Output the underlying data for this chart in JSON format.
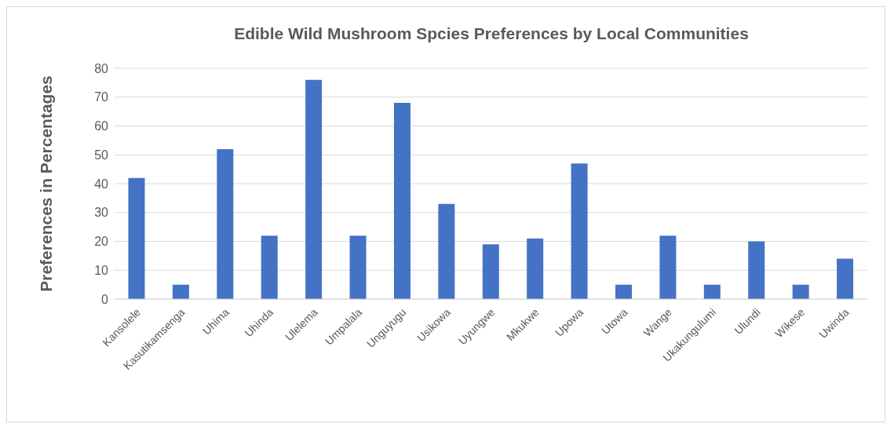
{
  "chart_data": {
    "type": "bar",
    "title": "Edible Wild Mushroom Spcies Preferences by Local Communities",
    "ylabel": "Preferences in Percentages",
    "categories": [
      "Kansolele",
      "Kasutikamsenga",
      "Uhima",
      "Uhinda",
      "Ulelema",
      "Umpalala",
      "Unguyugu",
      "Usikowa",
      "Uyungwe",
      "Mkukwe",
      "Upowa",
      "Utowa",
      "Wange",
      "Ukakungulumi",
      "Ulundi",
      "Wikese",
      "Uwinda"
    ],
    "values": [
      42,
      5,
      52,
      22,
      76,
      22,
      68,
      33,
      19,
      21,
      47,
      5,
      22,
      5,
      20,
      5,
      14
    ],
    "color": "#4472c4",
    "ylim": [
      0,
      80
    ],
    "yticks": [
      0,
      10,
      20,
      30,
      40,
      50,
      60,
      70,
      80
    ],
    "grid": "y",
    "legend": false
  }
}
